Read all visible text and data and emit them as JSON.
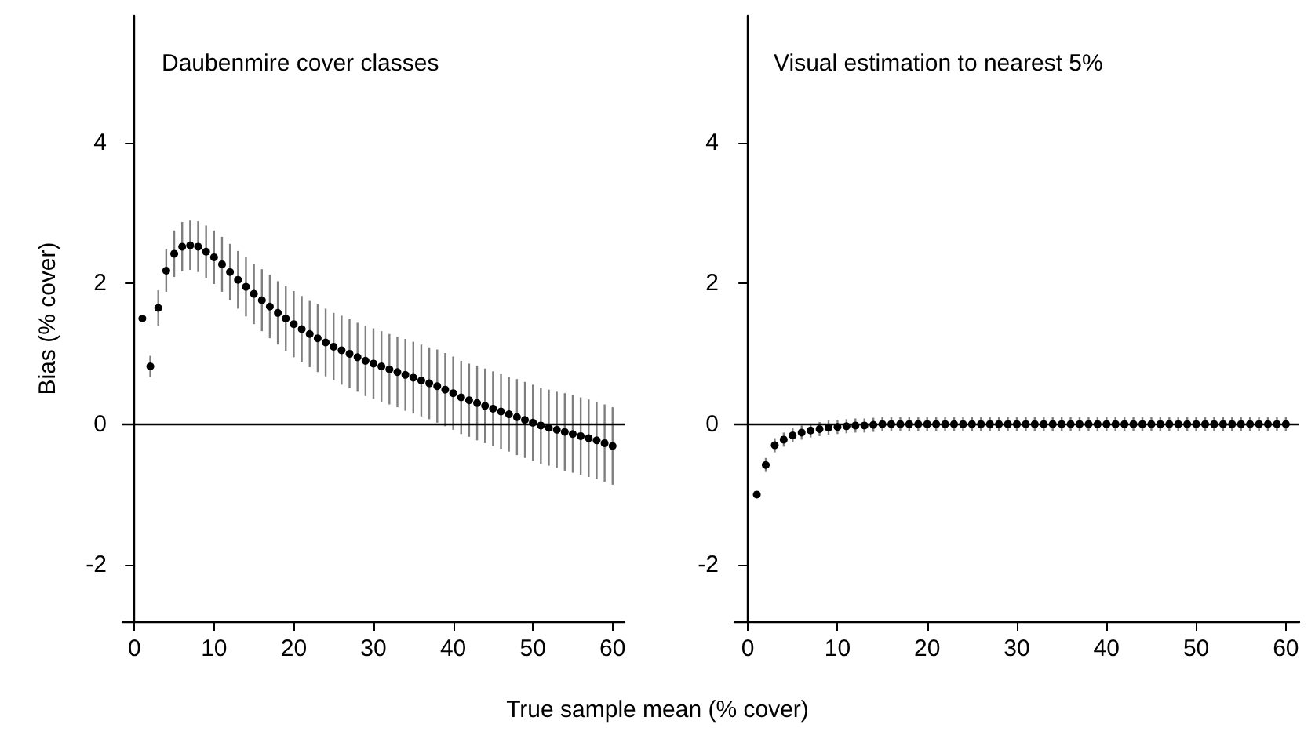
{
  "chart_data": [
    {
      "type": "scatter",
      "title": "Daubenmire cover classes",
      "xlabel": "True sample mean (% cover)",
      "ylabel": "Bias (% cover)",
      "xlim": [
        -1.5,
        61.5
      ],
      "xticks": [
        0,
        10,
        20,
        30,
        40,
        50,
        60
      ],
      "ylim": [
        -2.8,
        5.8
      ],
      "yticks": [
        -2,
        0,
        2,
        4
      ],
      "grid": false,
      "marker": "circle",
      "x": [
        1,
        2,
        3,
        4,
        5,
        6,
        7,
        8,
        9,
        10,
        11,
        12,
        13,
        14,
        15,
        16,
        17,
        18,
        19,
        20,
        21,
        22,
        23,
        24,
        25,
        26,
        27,
        28,
        29,
        30,
        31,
        32,
        33,
        34,
        35,
        36,
        37,
        38,
        39,
        40,
        41,
        42,
        43,
        44,
        45,
        46,
        47,
        48,
        49,
        50,
        51,
        52,
        53,
        54,
        55,
        56,
        57,
        58,
        59,
        60
      ],
      "series": [
        {
          "color": "#000000",
          "values": [
            1.5,
            0.82,
            1.65,
            2.18,
            2.42,
            2.52,
            2.54,
            2.52,
            2.45,
            2.37,
            2.27,
            2.16,
            2.05,
            1.95,
            1.85,
            1.76,
            1.67,
            1.58,
            1.5,
            1.42,
            1.35,
            1.28,
            1.22,
            1.16,
            1.1,
            1.05,
            1.0,
            0.95,
            0.9,
            0.86,
            0.82,
            0.78,
            0.74,
            0.7,
            0.66,
            0.62,
            0.58,
            0.54,
            0.49,
            0.44,
            0.38,
            0.34,
            0.3,
            0.26,
            0.22,
            0.18,
            0.14,
            0.1,
            0.06,
            0.02,
            -0.02,
            -0.05,
            -0.08,
            -0.11,
            -0.14,
            -0.17,
            -0.2,
            -0.23,
            -0.27,
            -0.31
          ],
          "errors": [
            null,
            0.15,
            0.25,
            0.3,
            0.33,
            0.35,
            0.35,
            0.36,
            0.37,
            0.38,
            0.39,
            0.4,
            0.41,
            0.42,
            0.43,
            0.44,
            0.45,
            0.45,
            0.46,
            0.47,
            0.47,
            0.47,
            0.48,
            0.48,
            0.48,
            0.49,
            0.49,
            0.49,
            0.5,
            0.5,
            0.5,
            0.5,
            0.5,
            0.51,
            0.51,
            0.51,
            0.51,
            0.52,
            0.52,
            0.52,
            0.52,
            0.52,
            0.53,
            0.53,
            0.53,
            0.53,
            0.53,
            0.54,
            0.54,
            0.54,
            0.54,
            0.54,
            0.54,
            0.55,
            0.55,
            0.55,
            0.55,
            0.55,
            0.55,
            0.55
          ]
        }
      ],
      "ref_lines": [
        {
          "axis": "y",
          "value": 0,
          "color": "#000000"
        }
      ]
    },
    {
      "type": "scatter",
      "title": "Visual estimation to nearest 5%",
      "xlim": [
        -1.5,
        61.5
      ],
      "xticks": [
        0,
        10,
        20,
        30,
        40,
        50,
        60
      ],
      "ylim": [
        -2.8,
        5.8
      ],
      "yticks": [
        -2,
        0,
        2,
        4
      ],
      "grid": false,
      "marker": "circle",
      "x": [
        1,
        2,
        3,
        4,
        5,
        6,
        7,
        8,
        9,
        10,
        11,
        12,
        13,
        14,
        15,
        16,
        17,
        18,
        19,
        20,
        21,
        22,
        23,
        24,
        25,
        26,
        27,
        28,
        29,
        30,
        31,
        32,
        33,
        34,
        35,
        36,
        37,
        38,
        39,
        40,
        41,
        42,
        43,
        44,
        45,
        46,
        47,
        48,
        49,
        50,
        51,
        52,
        53,
        54,
        55,
        56,
        57,
        58,
        59,
        60
      ],
      "series": [
        {
          "color": "#000000",
          "values": [
            -1.0,
            -0.58,
            -0.3,
            -0.22,
            -0.16,
            -0.12,
            -0.09,
            -0.07,
            -0.05,
            -0.04,
            -0.03,
            -0.02,
            -0.02,
            -0.01,
            0,
            0,
            0,
            0,
            0,
            0,
            0,
            0,
            0,
            0,
            0,
            0,
            0,
            0,
            0,
            0,
            0,
            0,
            0,
            0,
            0,
            0,
            0,
            0,
            0,
            0,
            0,
            0,
            0,
            0,
            0,
            0,
            0,
            0,
            0,
            0,
            0,
            0,
            0,
            0,
            0,
            0,
            0,
            0,
            0,
            0
          ],
          "errors": [
            null,
            0.1,
            0.1,
            0.1,
            0.1,
            0.1,
            0.1,
            0.1,
            0.1,
            0.1,
            0.1,
            0.1,
            0.1,
            0.1,
            0.1,
            0.1,
            0.1,
            0.1,
            0.1,
            0.1,
            0.1,
            0.1,
            0.1,
            0.1,
            0.1,
            0.1,
            0.1,
            0.1,
            0.1,
            0.1,
            0.1,
            0.1,
            0.1,
            0.1,
            0.1,
            0.1,
            0.1,
            0.1,
            0.1,
            0.1,
            0.1,
            0.1,
            0.1,
            0.1,
            0.1,
            0.1,
            0.1,
            0.1,
            0.1,
            0.1,
            0.1,
            0.1,
            0.1,
            0.1,
            0.1,
            0.1,
            0.1,
            0.1,
            0.1,
            0.1
          ]
        }
      ],
      "ref_lines": [
        {
          "axis": "y",
          "value": 0,
          "color": "#000000"
        }
      ]
    }
  ]
}
